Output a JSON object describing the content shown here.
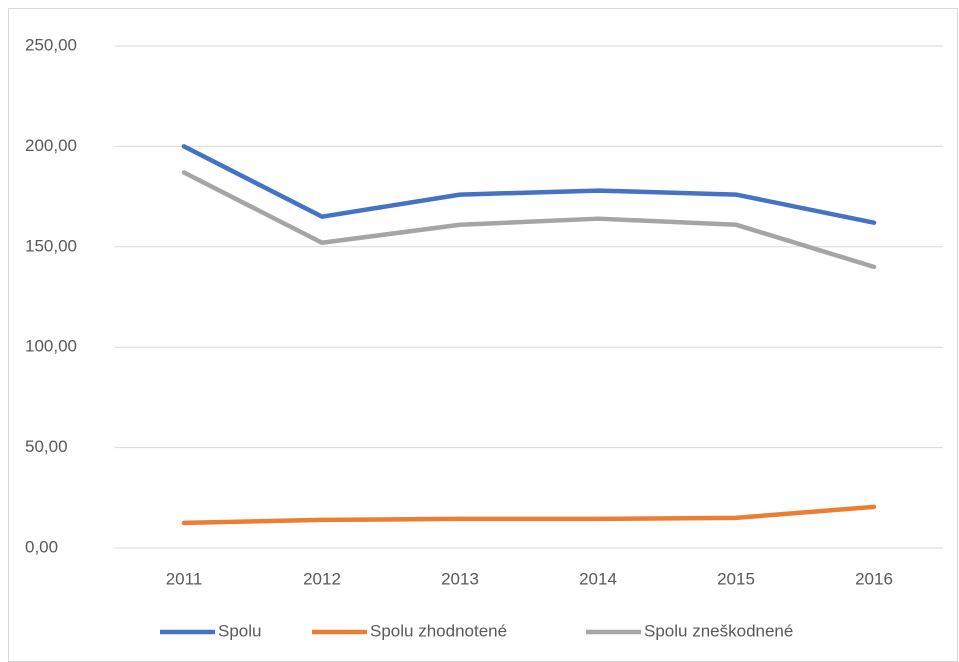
{
  "chart_data": {
    "type": "line",
    "categories": [
      "2011",
      "2012",
      "2013",
      "2014",
      "2015",
      "2016"
    ],
    "series": [
      {
        "name": "Spolu",
        "color": "#4472c4",
        "values": [
          200,
          165,
          176,
          178,
          176,
          162
        ]
      },
      {
        "name": "Spolu zhodnotené",
        "color": "#ed7d31",
        "values": [
          12.5,
          14,
          14.5,
          14.5,
          15,
          20.5
        ]
      },
      {
        "name": "Spolu zneškodnené",
        "color": "#a5a5a5",
        "values": [
          187,
          152,
          161,
          164,
          161,
          140
        ]
      }
    ],
    "ylim": [
      0,
      250
    ],
    "yticks": [
      {
        "value": 0,
        "label": "0,00"
      },
      {
        "value": 50,
        "label": "50,00"
      },
      {
        "value": 100,
        "label": "100,00"
      },
      {
        "value": 150,
        "label": "150,00"
      },
      {
        "value": 200,
        "label": "200,00"
      },
      {
        "value": 250,
        "label": "250,00"
      }
    ],
    "grid": true,
    "legend": "bottom"
  }
}
